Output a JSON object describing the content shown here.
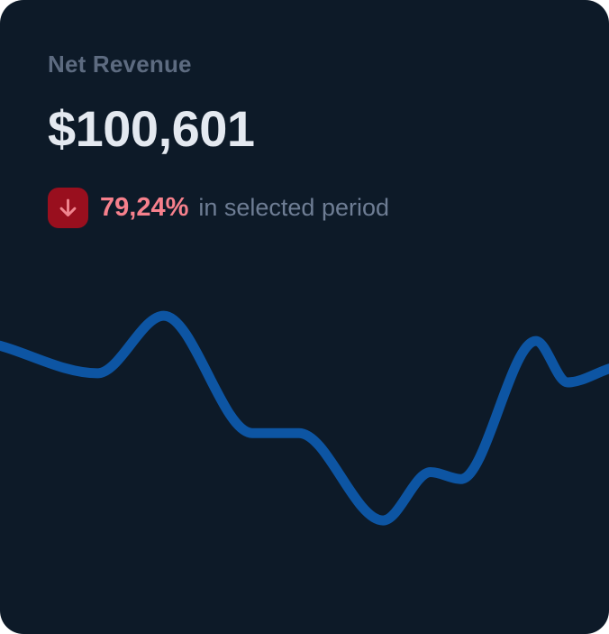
{
  "card": {
    "title": "Net Revenue",
    "value": "$100,601",
    "delta": {
      "percent": "79,24%",
      "caption": "in selected period",
      "direction": "down"
    }
  },
  "colors": {
    "card_bg": "#0d1a28",
    "title": "#5d6b80",
    "value": "#e4e9f0",
    "delta_percent": "#f6808c",
    "badge_bg": "#990f1e",
    "badge_arrow": "#f0858f",
    "caption": "#6e7d94",
    "line": "#0d55a3"
  },
  "chart_data": {
    "type": "line",
    "title": "Net Revenue trend sparkline",
    "xlabel": "",
    "ylabel": "",
    "axes_visible": false,
    "grid": false,
    "legend": false,
    "ylim": [
      0,
      100
    ],
    "x_percent": [
      0,
      16,
      26.9,
      41.4,
      49.1,
      62.9,
      70.7,
      75.7,
      88,
      93.2,
      100
    ],
    "values": [
      85,
      73,
      98,
      47,
      47,
      9,
      30,
      27,
      87,
      69,
      75
    ],
    "line_color": "#0d55a3",
    "stroke_width": 11,
    "smoothing": "monotone-cubic"
  }
}
